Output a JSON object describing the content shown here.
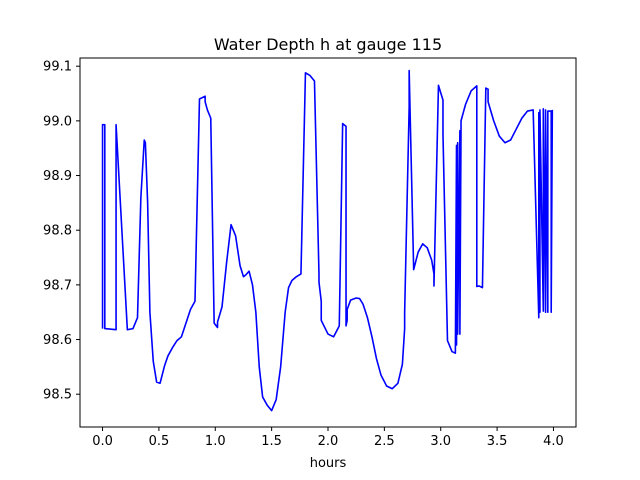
{
  "chart_data": {
    "type": "line",
    "title": "Water Depth h at gauge 115",
    "xlabel": "hours",
    "ylabel": "",
    "xlim": [
      -0.2,
      4.2
    ],
    "ylim": [
      98.44,
      99.115
    ],
    "xticks": [
      0.0,
      0.5,
      1.0,
      1.5,
      2.0,
      2.5,
      3.0,
      3.5,
      4.0
    ],
    "xtick_labels": [
      "0.0",
      "0.5",
      "1.0",
      "1.5",
      "2.0",
      "2.5",
      "3.0",
      "3.5",
      "4.0"
    ],
    "yticks": [
      98.5,
      98.6,
      98.7,
      98.8,
      98.9,
      99.0,
      99.1
    ],
    "ytick_labels": [
      "98.5",
      "98.6",
      "98.7",
      "98.8",
      "98.9",
      "99.0",
      "99.1"
    ],
    "grid": false,
    "legend": "none",
    "series": [
      {
        "color": "#0000ff",
        "x": [
          0.0,
          0.0,
          0.02,
          0.02,
          0.12,
          0.12,
          0.22,
          0.27,
          0.31,
          0.34,
          0.37,
          0.38,
          0.4,
          0.42,
          0.45,
          0.48,
          0.51,
          0.55,
          0.58,
          0.62,
          0.66,
          0.7,
          0.74,
          0.78,
          0.82,
          0.86,
          0.91,
          0.91,
          0.93,
          0.96,
          0.99,
          1.02,
          1.02,
          1.06,
          1.1,
          1.14,
          1.18,
          1.22,
          1.25,
          1.27,
          1.3,
          1.33,
          1.36,
          1.39,
          1.42,
          1.46,
          1.5,
          1.54,
          1.58,
          1.62,
          1.65,
          1.68,
          1.72,
          1.76,
          1.8,
          1.84,
          1.88,
          1.92,
          1.92,
          1.94,
          1.94,
          2.0,
          2.05,
          2.1,
          2.13,
          2.16,
          2.16,
          2.17,
          2.17,
          2.2,
          2.25,
          2.28,
          2.31,
          2.35,
          2.39,
          2.43,
          2.47,
          2.52,
          2.57,
          2.62,
          2.66,
          2.68,
          2.68,
          2.72,
          2.72,
          2.76,
          2.8,
          2.84,
          2.88,
          2.92,
          2.94,
          2.94,
          2.98,
          3.02,
          3.02,
          3.06,
          3.1,
          3.13,
          3.13,
          3.14,
          3.14,
          3.15,
          3.15,
          3.17,
          3.17,
          3.18,
          3.18,
          3.22,
          3.27,
          3.32,
          3.32,
          3.34,
          3.37,
          3.4,
          3.42,
          3.42,
          3.47,
          3.52,
          3.57,
          3.62,
          3.67,
          3.72,
          3.77,
          3.82,
          3.87,
          3.87,
          3.88,
          3.88,
          3.91,
          3.91,
          3.93,
          3.93,
          3.95,
          3.95,
          3.98,
          3.98,
          3.99
        ],
        "y": [
          98.62,
          98.993,
          98.993,
          98.62,
          98.618,
          98.993,
          98.618,
          98.62,
          98.64,
          98.86,
          98.965,
          98.96,
          98.85,
          98.65,
          98.56,
          98.522,
          98.52,
          98.552,
          98.57,
          98.585,
          98.598,
          98.605,
          98.63,
          98.655,
          98.67,
          99.04,
          99.045,
          99.035,
          99.02,
          99.005,
          98.63,
          98.622,
          98.632,
          98.66,
          98.74,
          98.81,
          98.79,
          98.735,
          98.715,
          98.718,
          98.725,
          98.7,
          98.65,
          98.55,
          98.495,
          98.48,
          98.47,
          98.49,
          98.55,
          98.65,
          98.695,
          98.708,
          98.715,
          98.72,
          99.088,
          99.083,
          99.073,
          98.72,
          98.705,
          98.67,
          98.635,
          98.61,
          98.605,
          98.625,
          98.995,
          98.99,
          98.625,
          98.635,
          98.655,
          98.672,
          98.676,
          98.675,
          98.665,
          98.64,
          98.605,
          98.565,
          98.535,
          98.515,
          98.51,
          98.52,
          98.555,
          98.62,
          98.65,
          99.025,
          99.092,
          98.728,
          98.76,
          98.775,
          98.768,
          98.745,
          98.72,
          98.698,
          99.065,
          99.038,
          98.975,
          98.598,
          98.578,
          98.575,
          98.58,
          98.955,
          98.59,
          98.96,
          98.61,
          98.982,
          98.61,
          98.985,
          99.0,
          99.03,
          99.055,
          99.064,
          98.697,
          98.698,
          98.695,
          99.06,
          99.058,
          99.035,
          99.0,
          98.972,
          98.96,
          98.965,
          98.985,
          99.005,
          99.018,
          99.02,
          98.64,
          99.015,
          98.65,
          99.02,
          98.652,
          99.022,
          98.65,
          99.02,
          98.65,
          99.018,
          99.018,
          98.65,
          99.02
        ]
      }
    ]
  }
}
